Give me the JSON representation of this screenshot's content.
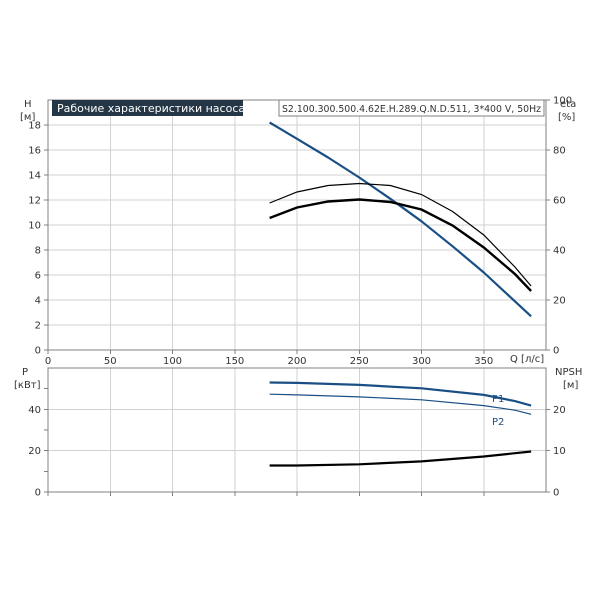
{
  "chart_data": [
    {
      "type": "line",
      "title": "Рабочие характеристики насоса",
      "model_label": "S2.100.300.500.4.62E.H.289.Q.N.D.511, 3*400 V, 50Hz",
      "xlabel": "Q [л/с]",
      "ylabel_left": [
        "H",
        "[м]"
      ],
      "ylabel_right": [
        "eta",
        "[%]"
      ],
      "xlim": [
        0,
        400
      ],
      "ylim_left": [
        0,
        20
      ],
      "ylim_right": [
        0,
        100
      ],
      "x_ticks": [
        "0",
        "50",
        "100",
        "150",
        "200",
        "250",
        "300",
        "350"
      ],
      "y_ticks_left": [
        "0",
        "2",
        "4",
        "6",
        "8",
        "10",
        "12",
        "14",
        "16",
        "18"
      ],
      "y_ticks_right": [
        "0",
        "20",
        "40",
        "60",
        "80",
        "100"
      ],
      "grid": true,
      "series": [
        {
          "color": "#1a4f85",
          "x": [
            178,
            200,
            225,
            250,
            275,
            300,
            325,
            350,
            375,
            388
          ],
          "y": [
            18.2,
            16.9,
            15.4,
            13.8,
            12.1,
            10.3,
            8.3,
            6.2,
            3.9,
            2.7
          ]
        },
        {
          "color": "#000000",
          "x": [
            178,
            200,
            225,
            250,
            275,
            300,
            325,
            350,
            375,
            388
          ],
          "y": [
            58.8,
            63.2,
            65.8,
            66.6,
            65.8,
            62.2,
            55.4,
            46.0,
            33.2,
            25.6
          ]
        },
        {
          "color": "#000000",
          "x": [
            178,
            200,
            225,
            250,
            275,
            300,
            325,
            350,
            375,
            388
          ],
          "y": [
            52.8,
            57.0,
            59.4,
            60.2,
            59.2,
            56.2,
            49.8,
            41.0,
            30.4,
            23.6
          ]
        }
      ]
    },
    {
      "type": "line",
      "ylabel_left": [
        "P",
        "[кВт]"
      ],
      "ylabel_right": [
        "NPSH",
        "[м]"
      ],
      "xlim": [
        0,
        400
      ],
      "ylim_left": [
        0,
        60
      ],
      "ylim_right": [
        0,
        30
      ],
      "y_ticks_left": [
        "0",
        "20",
        "40"
      ],
      "y_ticks_right": [
        "0",
        "10",
        "20"
      ],
      "grid": true,
      "series": [
        {
          "name": "P1",
          "color": "#1a4f85",
          "x": [
            178,
            200,
            250,
            300,
            350,
            375,
            388
          ],
          "y": [
            53.0,
            52.8,
            51.8,
            50.2,
            47.0,
            44.0,
            41.8
          ]
        },
        {
          "name": "P2",
          "color": "#1a4f85",
          "x": [
            178,
            200,
            250,
            300,
            350,
            375,
            388
          ],
          "y": [
            47.3,
            47.0,
            46.0,
            44.6,
            41.8,
            39.6,
            37.6
          ]
        },
        {
          "color": "#000000",
          "x": [
            178,
            200,
            250,
            300,
            350,
            388
          ],
          "y": [
            6.4,
            6.4,
            6.7,
            7.4,
            8.6,
            9.8
          ]
        }
      ]
    }
  ]
}
